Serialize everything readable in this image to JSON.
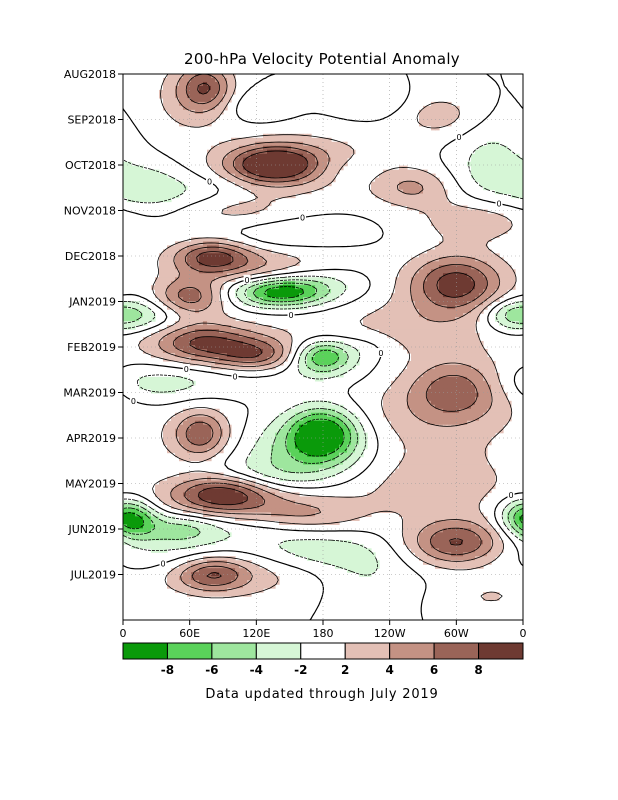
{
  "chart_data": {
    "type": "heatmap",
    "title": "200-hPa Velocity Potential Anomaly",
    "xlabel": "",
    "ylabel": "",
    "x_tick_labels": [
      "0",
      "60E",
      "120E",
      "180",
      "120W",
      "60W",
      "0"
    ],
    "x_tick_lons": [
      0,
      60,
      120,
      180,
      240,
      300,
      360
    ],
    "x_range": [
      0,
      360
    ],
    "y_tick_labels": [
      "AUG2018",
      "SEP2018",
      "OCT2018",
      "NOV2018",
      "DEC2018",
      "JAN2019",
      "FEB2019",
      "MAR2019",
      "APR2019",
      "MAY2019",
      "JUN2019",
      "JUL2019"
    ],
    "y_tick_months": [
      0,
      1,
      2,
      3,
      4,
      5,
      6,
      7,
      8,
      9,
      10,
      11
    ],
    "y_range_months": [
      0,
      12.0
    ],
    "colorbar": {
      "tick_labels": [
        "-8",
        "-6",
        "-4",
        "-2",
        "2",
        "4",
        "6",
        "8"
      ],
      "colors": [
        "#0a9a0a",
        "#5ad25a",
        "#9ee69e",
        "#d6f6d6",
        "#ffffff",
        "#e3c0b6",
        "#c49284",
        "#9a6458",
        "#6e3a32"
      ]
    },
    "contour_label": "0",
    "grid": true,
    "anomalies": [
      {
        "lon": 75,
        "month": 0.3,
        "value": 6,
        "sx": 16,
        "sy": 0.35
      },
      {
        "lon": 60,
        "month": 0.5,
        "value": 3,
        "sx": 26,
        "sy": 0.6
      },
      {
        "lon": 285,
        "month": 0.9,
        "value": 3,
        "sx": 26,
        "sy": 0.35
      },
      {
        "lon": 120,
        "month": 0.7,
        "value": -2,
        "sx": 22,
        "sy": 0.25
      },
      {
        "lon": 225,
        "month": 0.6,
        "value": -2,
        "sx": 25,
        "sy": 0.25
      },
      {
        "lon": 135,
        "month": 2.0,
        "value": 9,
        "sx": 28,
        "sy": 0.28
      },
      {
        "lon": 160,
        "month": 1.95,
        "value": 4,
        "sx": 55,
        "sy": 0.45
      },
      {
        "lon": 260,
        "month": 2.5,
        "value": 4,
        "sx": 26,
        "sy": 0.3
      },
      {
        "lon": 320,
        "month": 3.2,
        "value": 4,
        "sx": 35,
        "sy": 0.35
      },
      {
        "lon": 330,
        "month": 2.1,
        "value": -3,
        "sx": 25,
        "sy": 0.7
      },
      {
        "lon": 20,
        "month": 2.5,
        "value": -3,
        "sx": 25,
        "sy": 0.4
      },
      {
        "lon": 70,
        "month": 2.6,
        "value": -2,
        "sx": 35,
        "sy": 0.3
      },
      {
        "lon": 200,
        "month": 2.1,
        "value": -2,
        "sx": 25,
        "sy": 0.25
      },
      {
        "lon": 100,
        "month": 3.0,
        "value": 3,
        "sx": 40,
        "sy": 0.3
      },
      {
        "lon": 80,
        "month": 4.0,
        "value": 7,
        "sx": 24,
        "sy": 0.25
      },
      {
        "lon": 120,
        "month": 4.2,
        "value": 4,
        "sx": 55,
        "sy": 0.3
      },
      {
        "lon": 140,
        "month": 3.5,
        "value": -2,
        "sx": 45,
        "sy": 0.3
      },
      {
        "lon": 300,
        "month": 4.6,
        "value": 9,
        "sx": 30,
        "sy": 0.45
      },
      {
        "lon": 140,
        "month": 4.8,
        "value": -9,
        "sx": 28,
        "sy": 0.22
      },
      {
        "lon": 175,
        "month": 4.6,
        "value": -3,
        "sx": 30,
        "sy": 0.3
      },
      {
        "lon": 60,
        "month": 4.9,
        "value": 7,
        "sx": 22,
        "sy": 0.3
      },
      {
        "lon": 15,
        "month": 5.3,
        "value": -4,
        "sx": 28,
        "sy": 0.25
      },
      {
        "lon": 350,
        "month": 5.3,
        "value": -4,
        "sx": 18,
        "sy": 0.25
      },
      {
        "lon": 260,
        "month": 5.6,
        "value": 3,
        "sx": 60,
        "sy": 0.5
      },
      {
        "lon": 70,
        "month": 5.9,
        "value": 6,
        "sx": 30,
        "sy": 0.3
      },
      {
        "lon": 120,
        "month": 6.2,
        "value": 6,
        "sx": 25,
        "sy": 0.25
      },
      {
        "lon": 95,
        "month": 6.0,
        "value": 3,
        "sx": 50,
        "sy": 0.4
      },
      {
        "lon": 180,
        "month": 6.2,
        "value": -8,
        "sx": 18,
        "sy": 0.25
      },
      {
        "lon": 220,
        "month": 6.0,
        "value": -2,
        "sx": 20,
        "sy": 0.25
      },
      {
        "lon": 140,
        "month": 6.5,
        "value": -2,
        "sx": 60,
        "sy": 0.3
      },
      {
        "lon": 300,
        "month": 6.9,
        "value": 6,
        "sx": 30,
        "sy": 0.45
      },
      {
        "lon": 280,
        "month": 7.5,
        "value": 3,
        "sx": 55,
        "sy": 0.6
      },
      {
        "lon": 30,
        "month": 6.8,
        "value": -3,
        "sx": 40,
        "sy": 0.3
      },
      {
        "lon": 180,
        "month": 7.9,
        "value": -10,
        "sx": 22,
        "sy": 0.4
      },
      {
        "lon": 160,
        "month": 8.3,
        "value": -4,
        "sx": 45,
        "sy": 0.5
      },
      {
        "lon": 70,
        "month": 7.9,
        "value": 6,
        "sx": 16,
        "sy": 0.35
      },
      {
        "lon": 70,
        "month": 8.0,
        "value": 2,
        "sx": 35,
        "sy": 0.5
      },
      {
        "lon": 90,
        "month": 9.2,
        "value": 8,
        "sx": 30,
        "sy": 0.3
      },
      {
        "lon": 110,
        "month": 9.3,
        "value": 4,
        "sx": 60,
        "sy": 0.4
      },
      {
        "lon": 280,
        "month": 9.0,
        "value": 3,
        "sx": 55,
        "sy": 0.6
      },
      {
        "lon": 165,
        "month": 9.7,
        "value": 3,
        "sx": 35,
        "sy": 0.25
      },
      {
        "lon": 100,
        "month": 10.0,
        "value": -2,
        "sx": 50,
        "sy": 0.3
      },
      {
        "lon": 120,
        "month": 8.9,
        "value": -4,
        "sx": 45,
        "sy": 0.3
      },
      {
        "lon": 10,
        "month": 9.8,
        "value": -7,
        "sx": 15,
        "sy": 0.3
      },
      {
        "lon": 50,
        "month": 10.0,
        "value": -4,
        "sx": 25,
        "sy": 0.25
      },
      {
        "lon": 355,
        "month": 9.7,
        "value": -4,
        "sx": 15,
        "sy": 0.3
      },
      {
        "lon": 300,
        "month": 10.3,
        "value": 8,
        "sx": 30,
        "sy": 0.35
      },
      {
        "lon": 80,
        "month": 11.0,
        "value": 6,
        "sx": 22,
        "sy": 0.25
      },
      {
        "lon": 100,
        "month": 11.0,
        "value": 3,
        "sx": 55,
        "sy": 0.4
      },
      {
        "lon": 170,
        "month": 10.5,
        "value": -3,
        "sx": 40,
        "sy": 0.3
      },
      {
        "lon": 220,
        "month": 11.0,
        "value": -2,
        "sx": 30,
        "sy": 0.5
      },
      {
        "lon": 40,
        "month": 10.6,
        "value": -2,
        "sx": 40,
        "sy": 0.3
      },
      {
        "lon": 330,
        "month": 11.5,
        "value": 2,
        "sx": 30,
        "sy": 0.3
      }
    ]
  },
  "note": "Data updated through July 2019"
}
